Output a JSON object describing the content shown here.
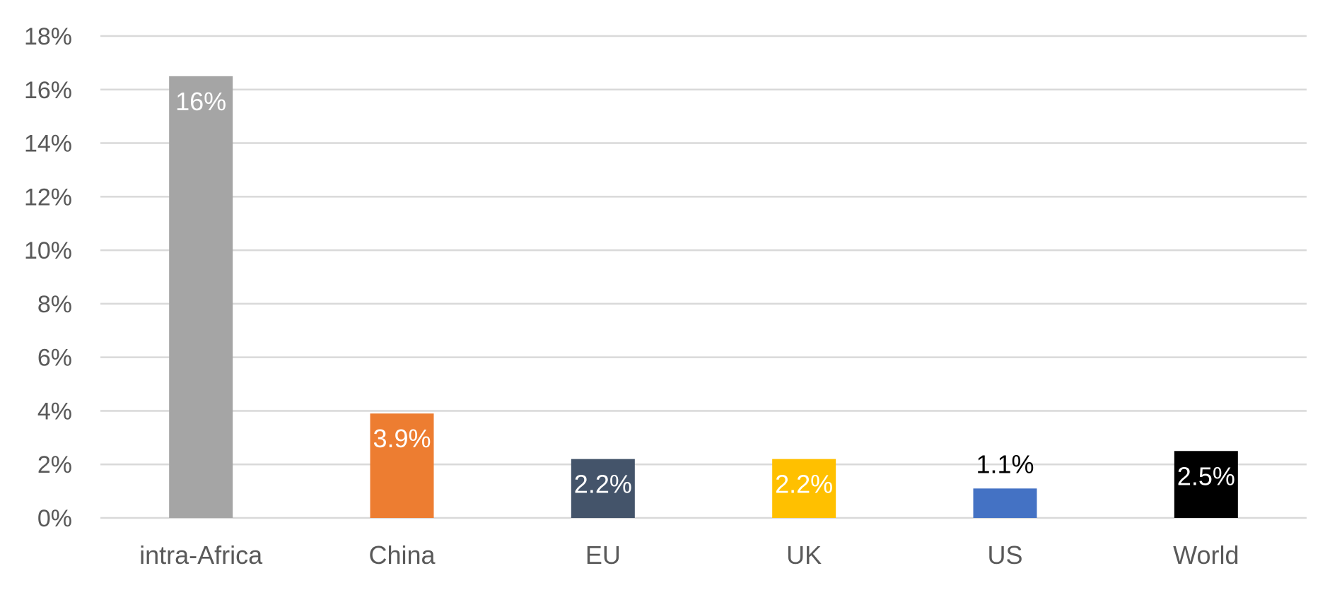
{
  "chart_data": {
    "type": "bar",
    "categories": [
      "intra-Africa",
      "China",
      "EU",
      "UK",
      "US",
      "World"
    ],
    "values": [
      16.5,
      3.9,
      2.2,
      2.2,
      1.1,
      2.5
    ],
    "data_labels": [
      "16%",
      "3.9%",
      "2.2%",
      "2.2%",
      "1.1%",
      "2.5%"
    ],
    "colors": [
      "#a5a5a5",
      "#ed7d31",
      "#44546a",
      "#ffc000",
      "#4472c4",
      "#000000"
    ],
    "label_colors": [
      "#ffffff",
      "#ffffff",
      "#ffffff",
      "#ffffff",
      "#000000",
      "#ffffff"
    ],
    "label_position": [
      "inside-top",
      "inside-top",
      "inside-top",
      "inside-top",
      "outside-top",
      "inside-top"
    ],
    "ylim": [
      0,
      18
    ],
    "yticks": [
      0,
      2,
      4,
      6,
      8,
      10,
      12,
      14,
      16,
      18
    ],
    "ytick_labels": [
      "0%",
      "2%",
      "4%",
      "6%",
      "8%",
      "10%",
      "12%",
      "14%",
      "16%",
      "18%"
    ],
    "title": "",
    "xlabel": "",
    "ylabel": "",
    "grid": true,
    "legend": "none"
  }
}
